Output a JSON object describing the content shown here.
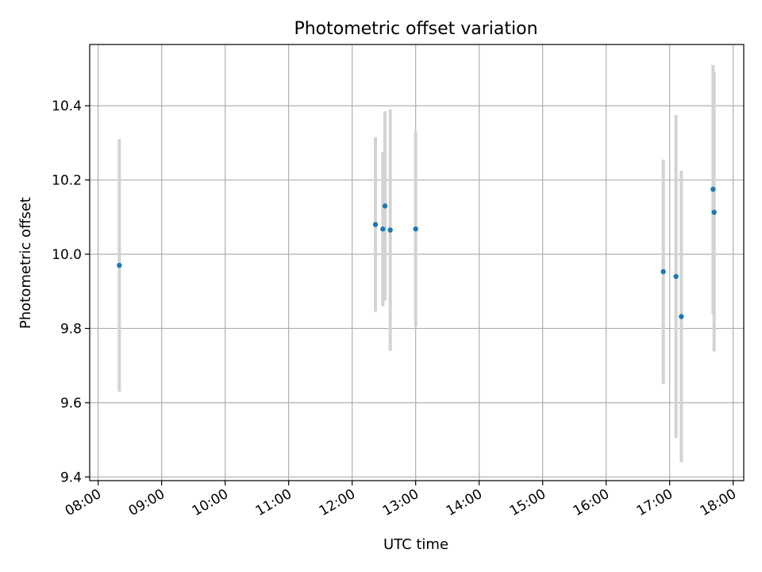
{
  "chart_data": {
    "type": "scatter",
    "title": "Photometric offset variation",
    "xlabel": "UTC time",
    "ylabel": "Photometric offset",
    "grid": true,
    "xlim": [
      "07:52",
      "18:10"
    ],
    "ylim": [
      9.39,
      10.565
    ],
    "x_ticks": [
      "08:00",
      "09:00",
      "10:00",
      "11:00",
      "12:00",
      "13:00",
      "14:00",
      "15:00",
      "16:00",
      "17:00",
      "18:00"
    ],
    "y_ticks": [
      9.4,
      9.6,
      9.8,
      10.0,
      10.2,
      10.4
    ],
    "y_tick_labels": [
      "9.4",
      "9.6",
      "9.8",
      "10.0",
      "10.2",
      "10.4"
    ],
    "marker_color": "#1f77b4",
    "errorbar_color": "#d3d3d3",
    "series": [
      {
        "points": [
          {
            "x": "08:20",
            "y": 9.97,
            "ylow": 9.63,
            "yhigh": 10.31
          },
          {
            "x": "12:22",
            "y": 10.08,
            "ylow": 9.845,
            "yhigh": 10.315
          },
          {
            "x": "12:29",
            "y": 10.068,
            "ylow": 9.86,
            "yhigh": 10.275
          },
          {
            "x": "12:31",
            "y": 10.13,
            "ylow": 9.875,
            "yhigh": 10.385
          },
          {
            "x": "12:36",
            "y": 10.065,
            "ylow": 9.74,
            "yhigh": 10.39
          },
          {
            "x": "13:00",
            "y": 10.068,
            "ylow": 9.805,
            "yhigh": 10.33
          },
          {
            "x": "16:54",
            "y": 9.953,
            "ylow": 9.65,
            "yhigh": 10.255
          },
          {
            "x": "17:06",
            "y": 9.94,
            "ylow": 9.505,
            "yhigh": 10.375
          },
          {
            "x": "17:11",
            "y": 9.832,
            "ylow": 9.44,
            "yhigh": 10.225
          },
          {
            "x": "17:41",
            "y": 10.175,
            "ylow": 9.84,
            "yhigh": 10.51
          },
          {
            "x": "17:42",
            "y": 10.113,
            "ylow": 9.738,
            "yhigh": 10.49
          }
        ]
      }
    ]
  }
}
